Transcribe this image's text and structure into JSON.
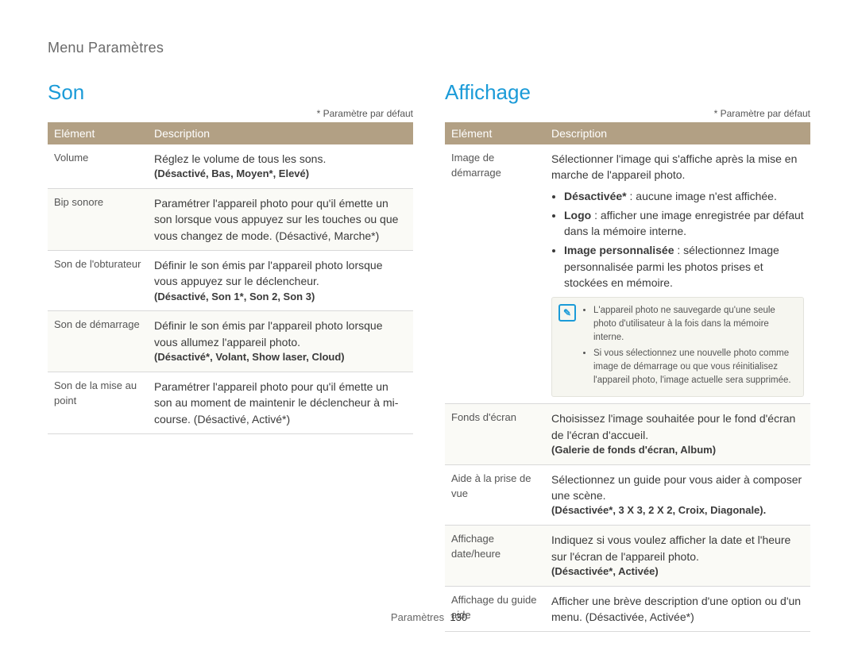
{
  "breadcrumb": "Menu Paramètres",
  "default_note": "* Paramètre par défaut",
  "footer": {
    "label": "Paramètres",
    "page": "130"
  },
  "table_headers": {
    "element": "Elément",
    "description": "Description"
  },
  "colors": {
    "accent": "#1b9bd8",
    "header_bg": "#b2a084",
    "header_text": "#ffffff",
    "row_border": "#d9d9d9",
    "row_odd_bg": "#ffffff",
    "row_even_bg": "#fafaf6",
    "text": "#3a3a3a",
    "muted_text": "#555555",
    "note_bg": "#f6f6f0",
    "note_border": "#e3e3dc"
  },
  "left": {
    "title": "Son",
    "rows": [
      {
        "label": "Volume",
        "desc": "Réglez le volume de tous les sons.",
        "opts": "(Désactivé, Bas, Moyen*, Elevé)"
      },
      {
        "label": "Bip sonore",
        "desc": "Paramétrer l'appareil photo pour qu'il émette un son lorsque vous appuyez sur les touches ou que vous changez de mode. (Désactivé, Marche*)",
        "opts": ""
      },
      {
        "label": "Son de l'obturateur",
        "desc": "Définir le son émis par l'appareil photo lorsque vous appuyez sur le déclencheur.",
        "opts": "(Désactivé, Son 1*, Son 2, Son 3)"
      },
      {
        "label": "Son de démarrage",
        "desc": "Définir le son émis par l'appareil photo lorsque vous allumez l'appareil photo.",
        "opts": "(Désactivé*, Volant, Show laser, Cloud)"
      },
      {
        "label": "Son de la mise au point",
        "desc": "Paramétrer l'appareil photo pour qu'il émette un son au moment de maintenir le déclencheur à mi-course. (Désactivé, Activé*)",
        "opts": ""
      }
    ]
  },
  "right": {
    "title": "Affichage",
    "rows": [
      {
        "label": "Image de démarrage",
        "desc": "Sélectionner l'image qui s'affiche après la mise en marche de l'appareil photo.",
        "bullets": [
          {
            "lbl": "Désactivée*",
            "txt": " : aucune image n'est affichée."
          },
          {
            "lbl": "Logo",
            "txt": " : afficher une image enregistrée par défaut dans la mémoire interne."
          },
          {
            "lbl": "Image personnalisée",
            "txt": " : sélectionnez Image personnalisée parmi les photos prises et stockées en mémoire."
          }
        ],
        "notes": [
          "L'appareil photo ne sauvegarde qu'une seule photo d'utilisateur à la fois dans la mémoire interne.",
          "Si vous sélectionnez une nouvelle photo comme image de démarrage ou que vous réinitialisez l'appareil photo, l'image actuelle sera supprimée."
        ]
      },
      {
        "label": "Fonds d'écran",
        "desc": "Choisissez l'image souhaitée pour le fond d'écran de l'écran d'accueil.",
        "opts": "(Galerie de fonds d'écran, Album)"
      },
      {
        "label": "Aide à la prise de vue",
        "desc": "Sélectionnez un guide pour vous aider à composer une scène.",
        "opts": "(Désactivée*, 3 X 3, 2 X 2, Croix, Diagonale)."
      },
      {
        "label": "Affichage date/heure",
        "desc": "Indiquez si vous voulez afficher la date et l'heure sur l'écran de l'appareil photo.",
        "opts": "(Désactivée*, Activée)"
      },
      {
        "label": "Affichage du guide aide",
        "desc": "Afficher une brève description d'une option ou d'un menu. (Désactivée, Activée*)",
        "opts": ""
      }
    ]
  }
}
